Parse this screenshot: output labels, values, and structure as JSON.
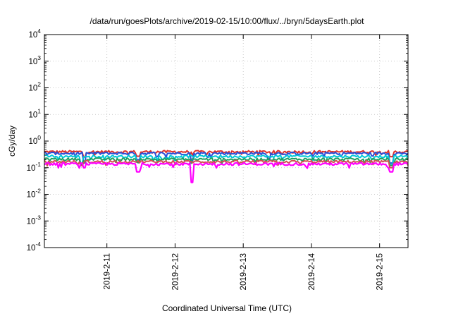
{
  "chart_data": {
    "type": "line",
    "title": "/data/run/goesPlots/archive/2019-02-15/10:00/flux/../bryn/5daysEarth.plot",
    "xlabel": "Coordinated Universal Time (UTC)",
    "ylabel": "cGy/day",
    "yscale": "log",
    "ylim": [
      0.0001,
      10000
    ],
    "xlim": [
      "2019-02-10T02:00",
      "2019-02-15T10:00"
    ],
    "grid": "dotted",
    "legend": "none",
    "y_ticks": [
      {
        "value": 0.0001,
        "base": "10",
        "exp": "-4"
      },
      {
        "value": 0.001,
        "base": "10",
        "exp": "-3"
      },
      {
        "value": 0.01,
        "base": "10",
        "exp": "-2"
      },
      {
        "value": 0.1,
        "base": "10",
        "exp": "-1"
      },
      {
        "value": 1,
        "base": "10",
        "exp": "0"
      },
      {
        "value": 10,
        "base": "10",
        "exp": "1"
      },
      {
        "value": 100,
        "base": "10",
        "exp": "2"
      },
      {
        "value": 1000,
        "base": "10",
        "exp": "3"
      },
      {
        "value": 10000,
        "base": "10",
        "exp": "4"
      }
    ],
    "x_ticks": [
      {
        "value": "2019-02-11T00:00",
        "label": "2019-2-11"
      },
      {
        "value": "2019-02-12T00:00",
        "label": "2019-2-12"
      },
      {
        "value": "2019-02-13T00:00",
        "label": "2019-2-13"
      },
      {
        "value": "2019-02-14T00:00",
        "label": "2019-2-14"
      },
      {
        "value": "2019-02-15T00:00",
        "label": "2019-2-15"
      }
    ],
    "series": [
      {
        "color": "#e0302a",
        "level": 0.4,
        "dips": [
          [
            "2019-02-10T16:00",
            0.25
          ],
          [
            "2019-02-11T11:00",
            0.27
          ],
          [
            "2019-02-15T04:00",
            0.26
          ]
        ]
      },
      {
        "color": "#2a4fd8",
        "level": 0.35,
        "dips": [
          [
            "2019-02-10T16:00",
            0.15
          ],
          [
            "2019-02-11T11:00",
            0.2
          ],
          [
            "2019-02-12T06:00",
            0.18
          ],
          [
            "2019-02-13T09:00",
            0.2
          ],
          [
            "2019-02-15T04:00",
            0.15
          ]
        ]
      },
      {
        "color": "#00c8d8",
        "level": 0.27,
        "dips": [
          [
            "2019-02-10T15:00",
            0.14
          ],
          [
            "2019-02-11T11:00",
            0.16
          ],
          [
            "2019-02-15T04:00",
            0.13
          ]
        ]
      },
      {
        "color": "#20a060",
        "level": 0.21,
        "dips": [
          [
            "2019-02-10T15:00",
            0.13
          ],
          [
            "2019-02-15T04:00",
            0.12
          ]
        ]
      },
      {
        "color": "#d05050",
        "level": 0.17,
        "dips": [
          [
            "2019-02-10T15:00",
            0.12
          ],
          [
            "2019-02-15T04:00",
            0.1
          ]
        ]
      },
      {
        "color": "#ff00ff",
        "level": 0.14,
        "dips": [
          [
            "2019-02-10T16:00",
            0.1
          ],
          [
            "2019-02-11T11:00",
            0.07
          ],
          [
            "2019-02-12T06:00",
            0.028
          ],
          [
            "2019-02-15T04:00",
            0.07
          ]
        ]
      }
    ]
  }
}
